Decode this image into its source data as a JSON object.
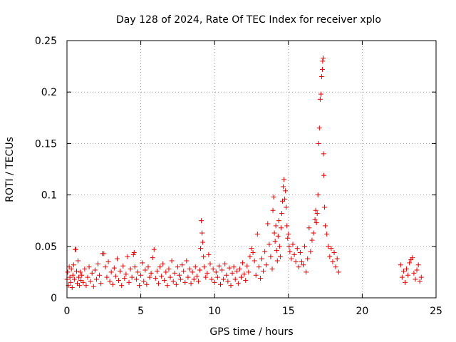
{
  "chart_data": {
    "type": "scatter",
    "title": "Day 128 of 2024, Rate Of TEC Index for receiver xplo",
    "xlabel": "GPS time / hours",
    "ylabel": "ROTI / TECUs",
    "xlim": [
      0,
      25
    ],
    "ylim": [
      0,
      0.25
    ],
    "xticks": [
      0,
      5,
      10,
      15,
      20,
      25
    ],
    "xtick_labels": [
      "0",
      "5",
      "10",
      "15",
      "20",
      "25"
    ],
    "yticks": [
      0,
      0.05,
      0.1,
      0.15,
      0.2,
      0.25
    ],
    "ytick_labels": [
      "0",
      "0.05",
      "0.1",
      "0.15",
      "0.2",
      "0.25"
    ],
    "grid": true,
    "marker": "+",
    "color": "#e00000",
    "series": [
      {
        "points": [
          [
            0.0,
            0.018
          ],
          [
            0.05,
            0.025
          ],
          [
            0.1,
            0.012
          ],
          [
            0.15,
            0.03
          ],
          [
            0.2,
            0.02
          ],
          [
            0.25,
            0.015
          ],
          [
            0.3,
            0.028
          ],
          [
            0.35,
            0.01
          ],
          [
            0.4,
            0.022
          ],
          [
            0.45,
            0.032
          ],
          [
            0.5,
            0.018
          ],
          [
            0.55,
            0.047
          ],
          [
            0.6,
            0.047
          ],
          [
            0.65,
            0.026
          ],
          [
            0.7,
            0.014
          ],
          [
            0.75,
            0.036
          ],
          [
            0.8,
            0.02
          ],
          [
            0.85,
            0.012
          ],
          [
            0.9,
            0.025
          ],
          [
            0.95,
            0.017
          ],
          [
            1.0,
            0.022
          ],
          [
            1.1,
            0.015
          ],
          [
            1.2,
            0.028
          ],
          [
            1.3,
            0.012
          ],
          [
            1.4,
            0.02
          ],
          [
            1.5,
            0.03
          ],
          [
            1.6,
            0.016
          ],
          [
            1.7,
            0.024
          ],
          [
            1.8,
            0.011
          ],
          [
            1.9,
            0.027
          ],
          [
            2.0,
            0.018
          ],
          [
            2.1,
            0.033
          ],
          [
            2.2,
            0.022
          ],
          [
            2.3,
            0.014
          ],
          [
            2.4,
            0.043
          ],
          [
            2.5,
            0.043
          ],
          [
            2.6,
            0.03
          ],
          [
            2.7,
            0.02
          ],
          [
            2.8,
            0.035
          ],
          [
            2.9,
            0.016
          ],
          [
            3.0,
            0.025
          ],
          [
            3.1,
            0.013
          ],
          [
            3.2,
            0.029
          ],
          [
            3.3,
            0.021
          ],
          [
            3.4,
            0.038
          ],
          [
            3.5,
            0.017
          ],
          [
            3.6,
            0.026
          ],
          [
            3.7,
            0.012
          ],
          [
            3.8,
            0.031
          ],
          [
            3.9,
            0.019
          ],
          [
            4.0,
            0.023
          ],
          [
            4.1,
            0.04
          ],
          [
            4.2,
            0.015
          ],
          [
            4.3,
            0.028
          ],
          [
            4.4,
            0.02
          ],
          [
            4.5,
            0.042
          ],
          [
            4.55,
            0.044
          ],
          [
            4.6,
            0.03
          ],
          [
            4.7,
            0.018
          ],
          [
            4.8,
            0.025
          ],
          [
            4.9,
            0.012
          ],
          [
            5.0,
            0.022
          ],
          [
            5.1,
            0.034
          ],
          [
            5.2,
            0.016
          ],
          [
            5.3,
            0.027
          ],
          [
            5.4,
            0.013
          ],
          [
            5.5,
            0.03
          ],
          [
            5.6,
            0.02
          ],
          [
            5.7,
            0.024
          ],
          [
            5.8,
            0.039
          ],
          [
            5.9,
            0.047
          ],
          [
            6.0,
            0.019
          ],
          [
            6.1,
            0.026
          ],
          [
            6.2,
            0.014
          ],
          [
            6.3,
            0.03
          ],
          [
            6.4,
            0.021
          ],
          [
            6.5,
            0.033
          ],
          [
            6.6,
            0.017
          ],
          [
            6.7,
            0.025
          ],
          [
            6.8,
            0.012
          ],
          [
            6.9,
            0.028
          ],
          [
            7.0,
            0.02
          ],
          [
            7.1,
            0.036
          ],
          [
            7.2,
            0.016
          ],
          [
            7.3,
            0.024
          ],
          [
            7.4,
            0.013
          ],
          [
            7.5,
            0.03
          ],
          [
            7.6,
            0.022
          ],
          [
            7.7,
            0.018
          ],
          [
            7.8,
            0.032
          ],
          [
            7.9,
            0.026
          ],
          [
            8.0,
            0.015
          ],
          [
            8.1,
            0.036
          ],
          [
            8.2,
            0.02
          ],
          [
            8.3,
            0.028
          ],
          [
            8.4,
            0.014
          ],
          [
            8.5,
            0.025
          ],
          [
            8.6,
            0.018
          ],
          [
            8.7,
            0.03
          ],
          [
            8.8,
            0.021
          ],
          [
            8.9,
            0.016
          ],
          [
            9.0,
            0.027
          ],
          [
            9.05,
            0.048
          ],
          [
            9.1,
            0.075
          ],
          [
            9.15,
            0.063
          ],
          [
            9.2,
            0.054
          ],
          [
            9.25,
            0.04
          ],
          [
            9.3,
            0.03
          ],
          [
            9.4,
            0.02
          ],
          [
            9.5,
            0.024
          ],
          [
            9.6,
            0.042
          ],
          [
            9.7,
            0.033
          ],
          [
            9.8,
            0.018
          ],
          [
            9.9,
            0.028
          ],
          [
            10.0,
            0.015
          ],
          [
            10.1,
            0.025
          ],
          [
            10.2,
            0.02
          ],
          [
            10.3,
            0.031
          ],
          [
            10.4,
            0.013
          ],
          [
            10.5,
            0.027
          ],
          [
            10.6,
            0.018
          ],
          [
            10.7,
            0.033
          ],
          [
            10.8,
            0.022
          ],
          [
            10.9,
            0.016
          ],
          [
            11.0,
            0.029
          ],
          [
            11.1,
            0.012
          ],
          [
            11.2,
            0.024
          ],
          [
            11.3,
            0.03
          ],
          [
            11.4,
            0.018
          ],
          [
            11.5,
            0.026
          ],
          [
            11.6,
            0.014
          ],
          [
            11.7,
            0.028
          ],
          [
            11.8,
            0.02
          ],
          [
            11.9,
            0.034
          ],
          [
            12.0,
            0.023
          ],
          [
            12.1,
            0.017
          ],
          [
            12.2,
            0.031
          ],
          [
            12.3,
            0.025
          ],
          [
            12.4,
            0.04
          ],
          [
            12.5,
            0.048
          ],
          [
            12.6,
            0.044
          ],
          [
            12.7,
            0.036
          ],
          [
            12.8,
            0.022
          ],
          [
            12.9,
            0.062
          ],
          [
            13.0,
            0.03
          ],
          [
            13.1,
            0.019
          ],
          [
            13.2,
            0.038
          ],
          [
            13.3,
            0.026
          ],
          [
            13.4,
            0.045
          ],
          [
            13.5,
            0.032
          ],
          [
            13.6,
            0.072
          ],
          [
            13.7,
            0.052
          ],
          [
            13.8,
            0.04
          ],
          [
            13.9,
            0.028
          ],
          [
            13.95,
            0.085
          ],
          [
            14.0,
            0.098
          ],
          [
            14.05,
            0.063
          ],
          [
            14.1,
            0.055
          ],
          [
            14.15,
            0.07
          ],
          [
            14.2,
            0.046
          ],
          [
            14.25,
            0.036
          ],
          [
            14.3,
            0.06
          ],
          [
            14.35,
            0.075
          ],
          [
            14.4,
            0.05
          ],
          [
            14.45,
            0.04
          ],
          [
            14.5,
            0.068
          ],
          [
            14.55,
            0.082
          ],
          [
            14.6,
            0.094
          ],
          [
            14.65,
            0.108
          ],
          [
            14.7,
            0.115
          ],
          [
            14.75,
            0.096
          ],
          [
            14.8,
            0.104
          ],
          [
            14.85,
            0.088
          ],
          [
            14.9,
            0.07
          ],
          [
            14.95,
            0.058
          ],
          [
            15.0,
            0.062
          ],
          [
            15.05,
            0.05
          ],
          [
            15.1,
            0.045
          ],
          [
            15.2,
            0.038
          ],
          [
            15.3,
            0.052
          ],
          [
            15.4,
            0.042
          ],
          [
            15.5,
            0.035
          ],
          [
            15.6,
            0.048
          ],
          [
            15.7,
            0.03
          ],
          [
            15.8,
            0.044
          ],
          [
            15.9,
            0.035
          ],
          [
            16.0,
            0.032
          ],
          [
            16.1,
            0.05
          ],
          [
            16.2,
            0.025
          ],
          [
            16.3,
            0.038
          ],
          [
            16.4,
            0.068
          ],
          [
            16.5,
            0.045
          ],
          [
            16.6,
            0.056
          ],
          [
            16.7,
            0.063
          ],
          [
            16.8,
            0.076
          ],
          [
            16.85,
            0.085
          ],
          [
            16.9,
            0.073
          ],
          [
            16.95,
            0.082
          ],
          [
            17.0,
            0.1
          ],
          [
            17.05,
            0.15
          ],
          [
            17.1,
            0.165
          ],
          [
            17.15,
            0.193
          ],
          [
            17.2,
            0.198
          ],
          [
            17.25,
            0.215
          ],
          [
            17.3,
            0.222
          ],
          [
            17.32,
            0.23
          ],
          [
            17.35,
            0.233
          ],
          [
            17.38,
            0.14
          ],
          [
            17.4,
            0.119
          ],
          [
            17.45,
            0.088
          ],
          [
            17.5,
            0.07
          ],
          [
            17.6,
            0.062
          ],
          [
            17.7,
            0.05
          ],
          [
            17.8,
            0.04
          ],
          [
            17.9,
            0.048
          ],
          [
            18.0,
            0.035
          ],
          [
            18.1,
            0.044
          ],
          [
            18.2,
            0.03
          ],
          [
            18.3,
            0.038
          ],
          [
            18.4,
            0.025
          ],
          [
            22.6,
            0.032
          ],
          [
            22.7,
            0.02
          ],
          [
            22.8,
            0.026
          ],
          [
            22.9,
            0.015
          ],
          [
            23.0,
            0.028
          ],
          [
            23.1,
            0.022
          ],
          [
            23.2,
            0.034
          ],
          [
            23.3,
            0.037
          ],
          [
            23.4,
            0.039
          ],
          [
            23.5,
            0.024
          ],
          [
            23.6,
            0.018
          ],
          [
            23.7,
            0.027
          ],
          [
            23.8,
            0.032
          ],
          [
            23.9,
            0.016
          ],
          [
            24.0,
            0.02
          ]
        ]
      }
    ]
  }
}
